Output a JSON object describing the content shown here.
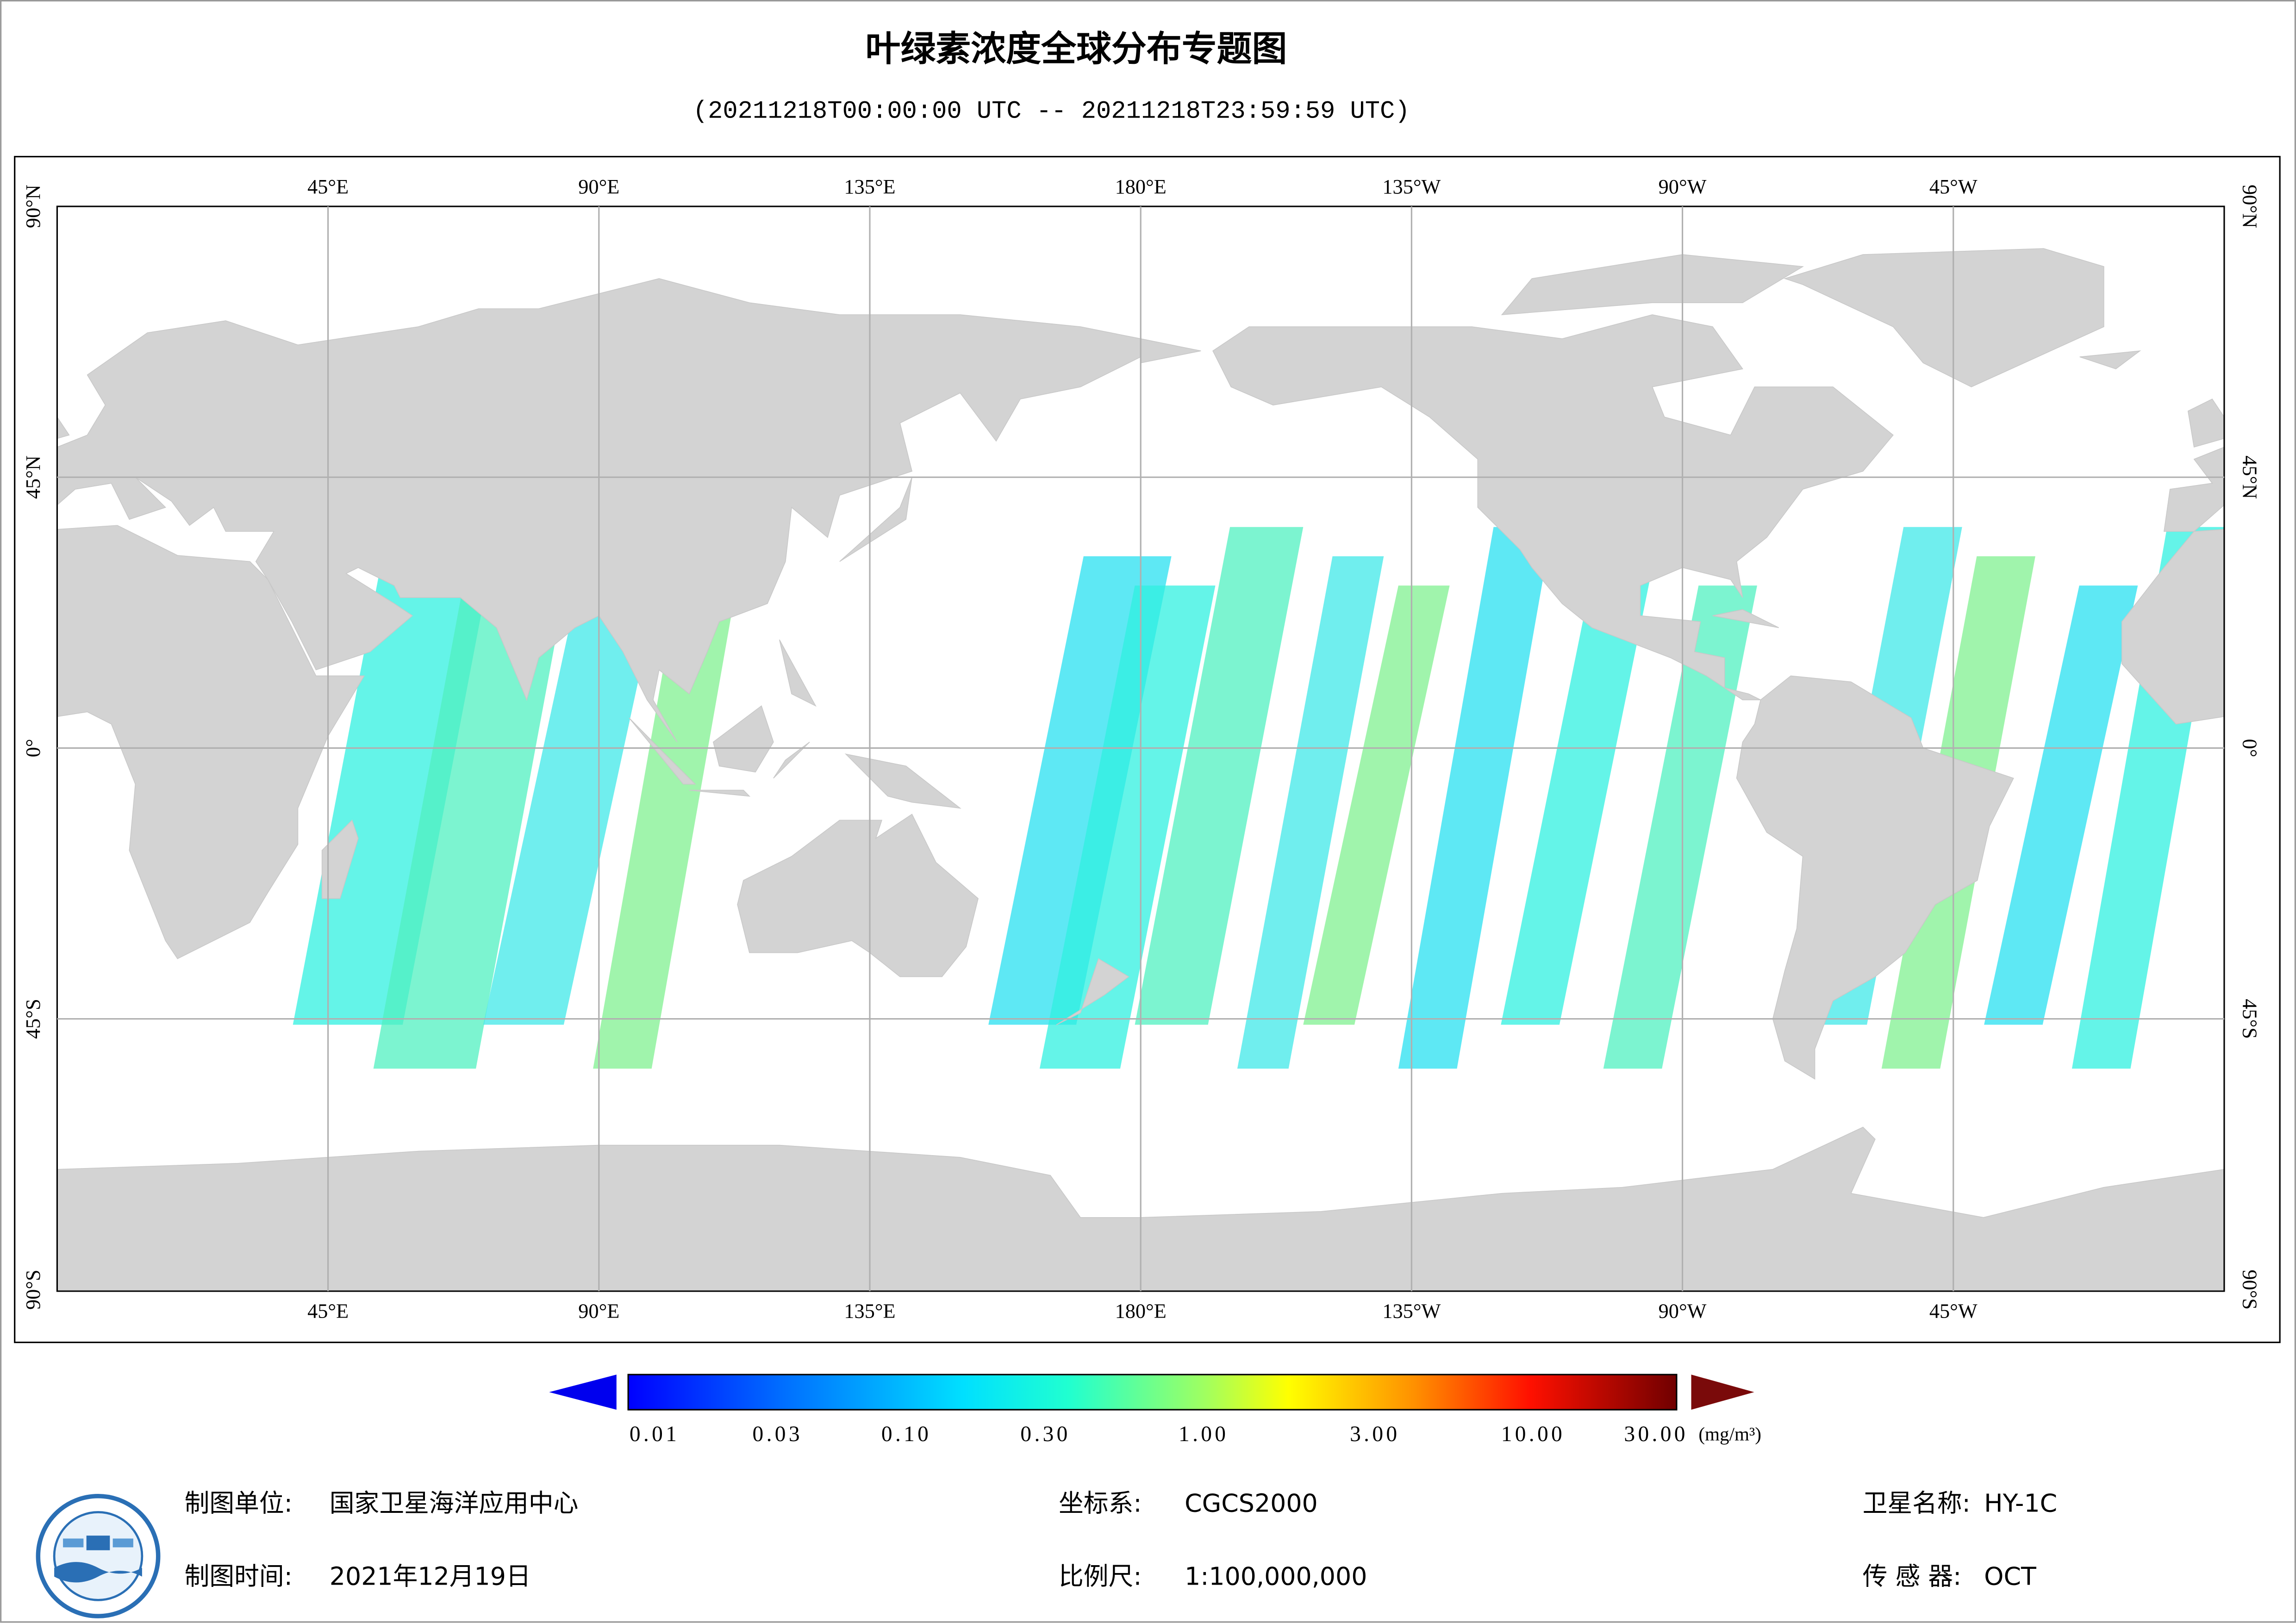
{
  "header": {
    "title": "叶绿素浓度全球分布专题图",
    "subtitle": "(20211218T00:00:00 UTC -- 20211218T23:59:59 UTC)"
  },
  "map": {
    "lon_labels": [
      "45°E",
      "90°E",
      "135°E",
      "180°E",
      "135°W",
      "90°W",
      "45°W"
    ],
    "lat_labels": [
      "90°N",
      "45°N",
      "0°",
      "45°S",
      "90°S"
    ]
  },
  "colorbar": {
    "tick_labels": [
      "0.01",
      "0.03",
      "0.10",
      "0.30",
      "1.00",
      "3.00",
      "10.00",
      "30.00"
    ],
    "unit": "(mg/m³)"
  },
  "footer": {
    "items": [
      {
        "label": "制图单位:",
        "value": "国家卫星海洋应用中心"
      },
      {
        "label": "坐标系:",
        "value": "CGCS2000"
      },
      {
        "label": "卫星名称:",
        "value": "HY-1C"
      },
      {
        "label": "制图时间:",
        "value": "2021年12月19日"
      },
      {
        "label": "比例尺:",
        "value": "1:100,000,000"
      },
      {
        "label": "传 感 器:",
        "value": "OCT"
      }
    ]
  }
}
